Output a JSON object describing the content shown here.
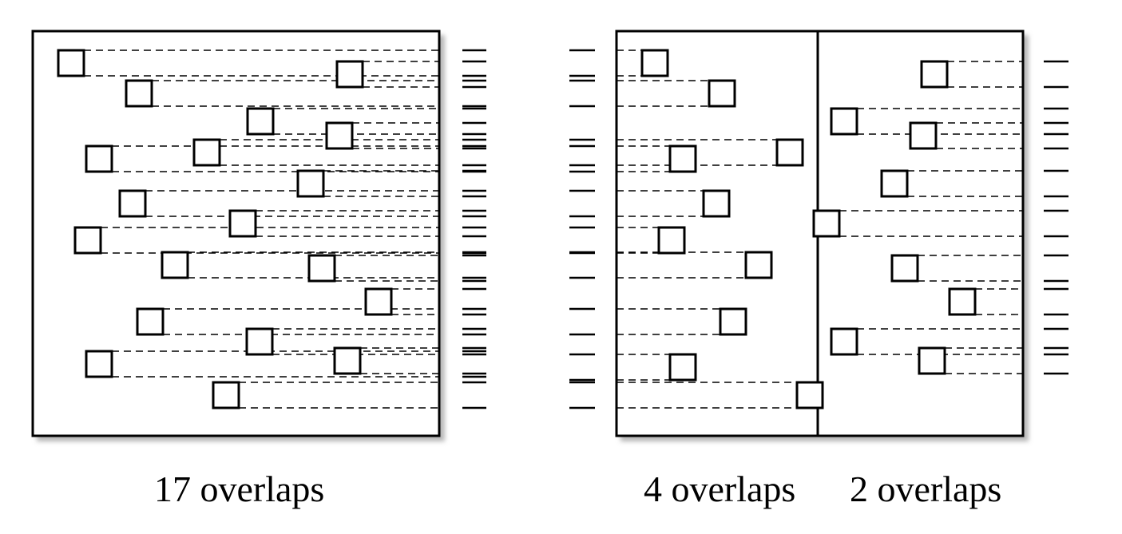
{
  "captions": {
    "left": "17 overlaps",
    "middle": "4 overlaps",
    "right": "2 overlaps"
  },
  "colors": {
    "stroke": "#000000",
    "shadow": "#b8b8b8",
    "background": "#ffffff"
  }
}
